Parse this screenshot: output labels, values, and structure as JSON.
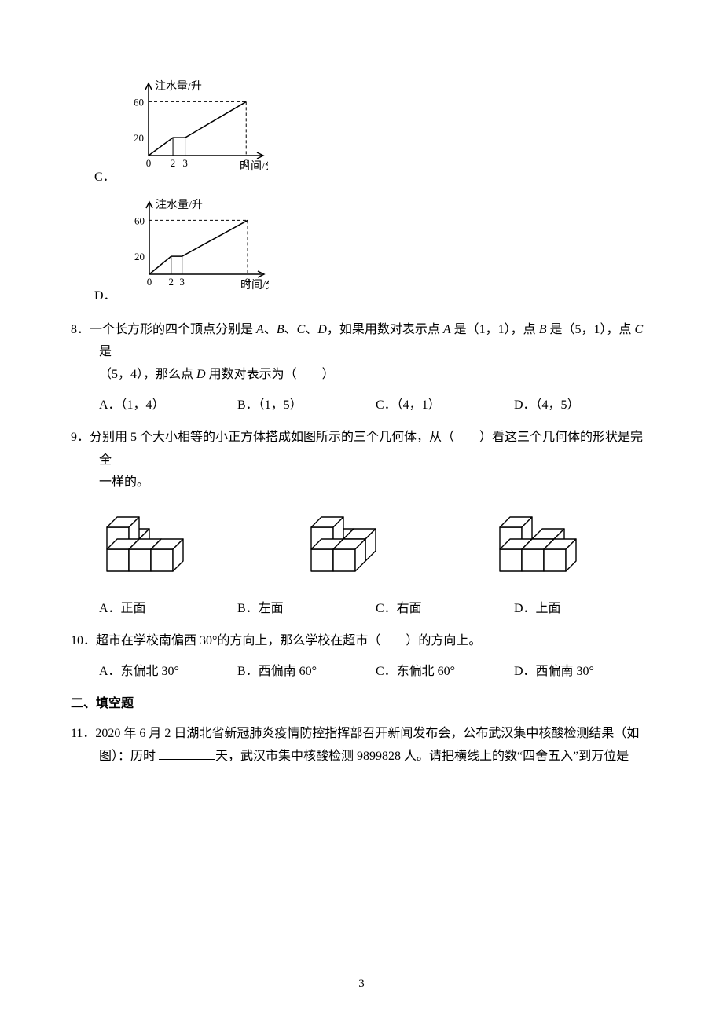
{
  "graphC": {
    "label": "C．",
    "yAxisLabel": "注水量/升",
    "xAxisLabel": "时间/分",
    "yTicks": [
      20,
      60
    ],
    "xTicks": [
      0,
      2,
      3,
      8
    ],
    "xMax": 8,
    "yMax": 60,
    "axisColor": "#000000",
    "dashColor": "#000000",
    "lineColor": "#000000",
    "width": 190,
    "height": 120,
    "strokeWidth": 1.5
  },
  "graphD": {
    "label": "D．",
    "yAxisLabel": "注水量/升",
    "xAxisLabel": "时间/分",
    "yTicks": [
      20,
      60
    ],
    "xTicks": [
      0,
      2,
      3,
      9
    ],
    "xMax": 9,
    "yMax": 60,
    "axisColor": "#000000",
    "dashColor": "#000000",
    "lineColor": "#000000",
    "width": 190,
    "height": 120,
    "strokeWidth": 1.5
  },
  "q8": {
    "number": "8．",
    "text_part1": "一个长方形的四个顶点分别是 ",
    "text_part2": "、",
    "text_part3": "，如果用数对表示点 ",
    "text_part4": " 是（1，1），点 ",
    "text_part5": " 是（5，1），点 ",
    "text_part6": " 是",
    "line2": "（5，4），那么点 ",
    "line2b": " 用数对表示为（　　）",
    "vars": [
      "A",
      "B",
      "C",
      "D",
      "A",
      "B",
      "C",
      "D"
    ],
    "optA": "A．（1，4）",
    "optB": "B．（1，5）",
    "optC": "C．（4，1）",
    "optD": "D．（4，5）"
  },
  "q9": {
    "number": "9．",
    "text": "分别用 5 个大小相等的小正方体搭成如图所示的三个几何体，从（　　）看这三个几何体的形状是完全",
    "line2": "一样的。",
    "shapeColor": "#000000",
    "shapeFill": "#ffffff",
    "shapeStroke": 1.4,
    "optA": "A．正面",
    "optB": "B．左面",
    "optC": "C．右面",
    "optD": "D．上面"
  },
  "q10": {
    "number": "10．",
    "text": "超市在学校南偏西 30°的方向上，那么学校在超市（　　）的方向上。",
    "optA": "A．东偏北 30°",
    "optB": "B．西偏南 60°",
    "optC": "C．东偏北 60°",
    "optD": "D．西偏南 30°"
  },
  "section2": "二、填空题",
  "q11": {
    "number": "11．",
    "text_a": "2020 年 6 月 2 日湖北省新冠肺炎疫情防控指挥部召开新闻发布会，公布武汉集中核酸检测结果（如",
    "text_b": "图）：历时 ",
    "text_c": "天，武汉市集中核酸检测 9899828 人。请把横线上的数“四舍五入”到万位是"
  },
  "pageNumber": "3"
}
